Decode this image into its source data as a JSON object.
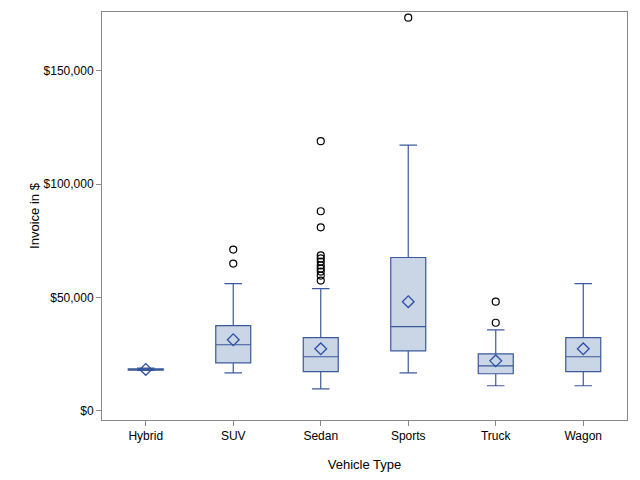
{
  "chart_data": {
    "type": "box",
    "x_label": "Vehicle Type",
    "y_label": "Invoice in $",
    "categories": [
      "Hybrid",
      "SUV",
      "Sedan",
      "Sports",
      "Truck",
      "Wagon"
    ],
    "lower_whisker": [
      17900,
      16800,
      9700,
      16800,
      11100,
      11100
    ],
    "q1": [
      18000,
      21240,
      17300,
      26500,
      16400,
      17300
    ],
    "median": [
      18200,
      29200,
      23900,
      37200,
      19900,
      23900
    ],
    "q3": [
      18600,
      37600,
      32300,
      67700,
      25200,
      32300
    ],
    "upper_whisker": [
      18900,
      56200,
      54000,
      117300,
      35800,
      56200
    ],
    "mean": [
      18300,
      31400,
      27400,
      48200,
      22100,
      27400
    ],
    "outliers": [
      [],
      [
        65000,
        71200
      ],
      [
        57500,
        59700,
        61500,
        62800,
        64200,
        65900,
        67300,
        68600,
        81000,
        88100,
        119000
      ],
      [
        173500
      ],
      [
        38900,
        48200
      ],
      []
    ],
    "color": "#cad5e5",
    "ylim": [
      -4000,
      176000
    ],
    "yticks": [
      {
        "value": 0,
        "label": "$0"
      },
      {
        "value": 50000,
        "label": "$50,000"
      },
      {
        "value": 100000,
        "label": "$100,000"
      },
      {
        "value": 150000,
        "label": "$150,000"
      }
    ],
    "grid": false
  }
}
